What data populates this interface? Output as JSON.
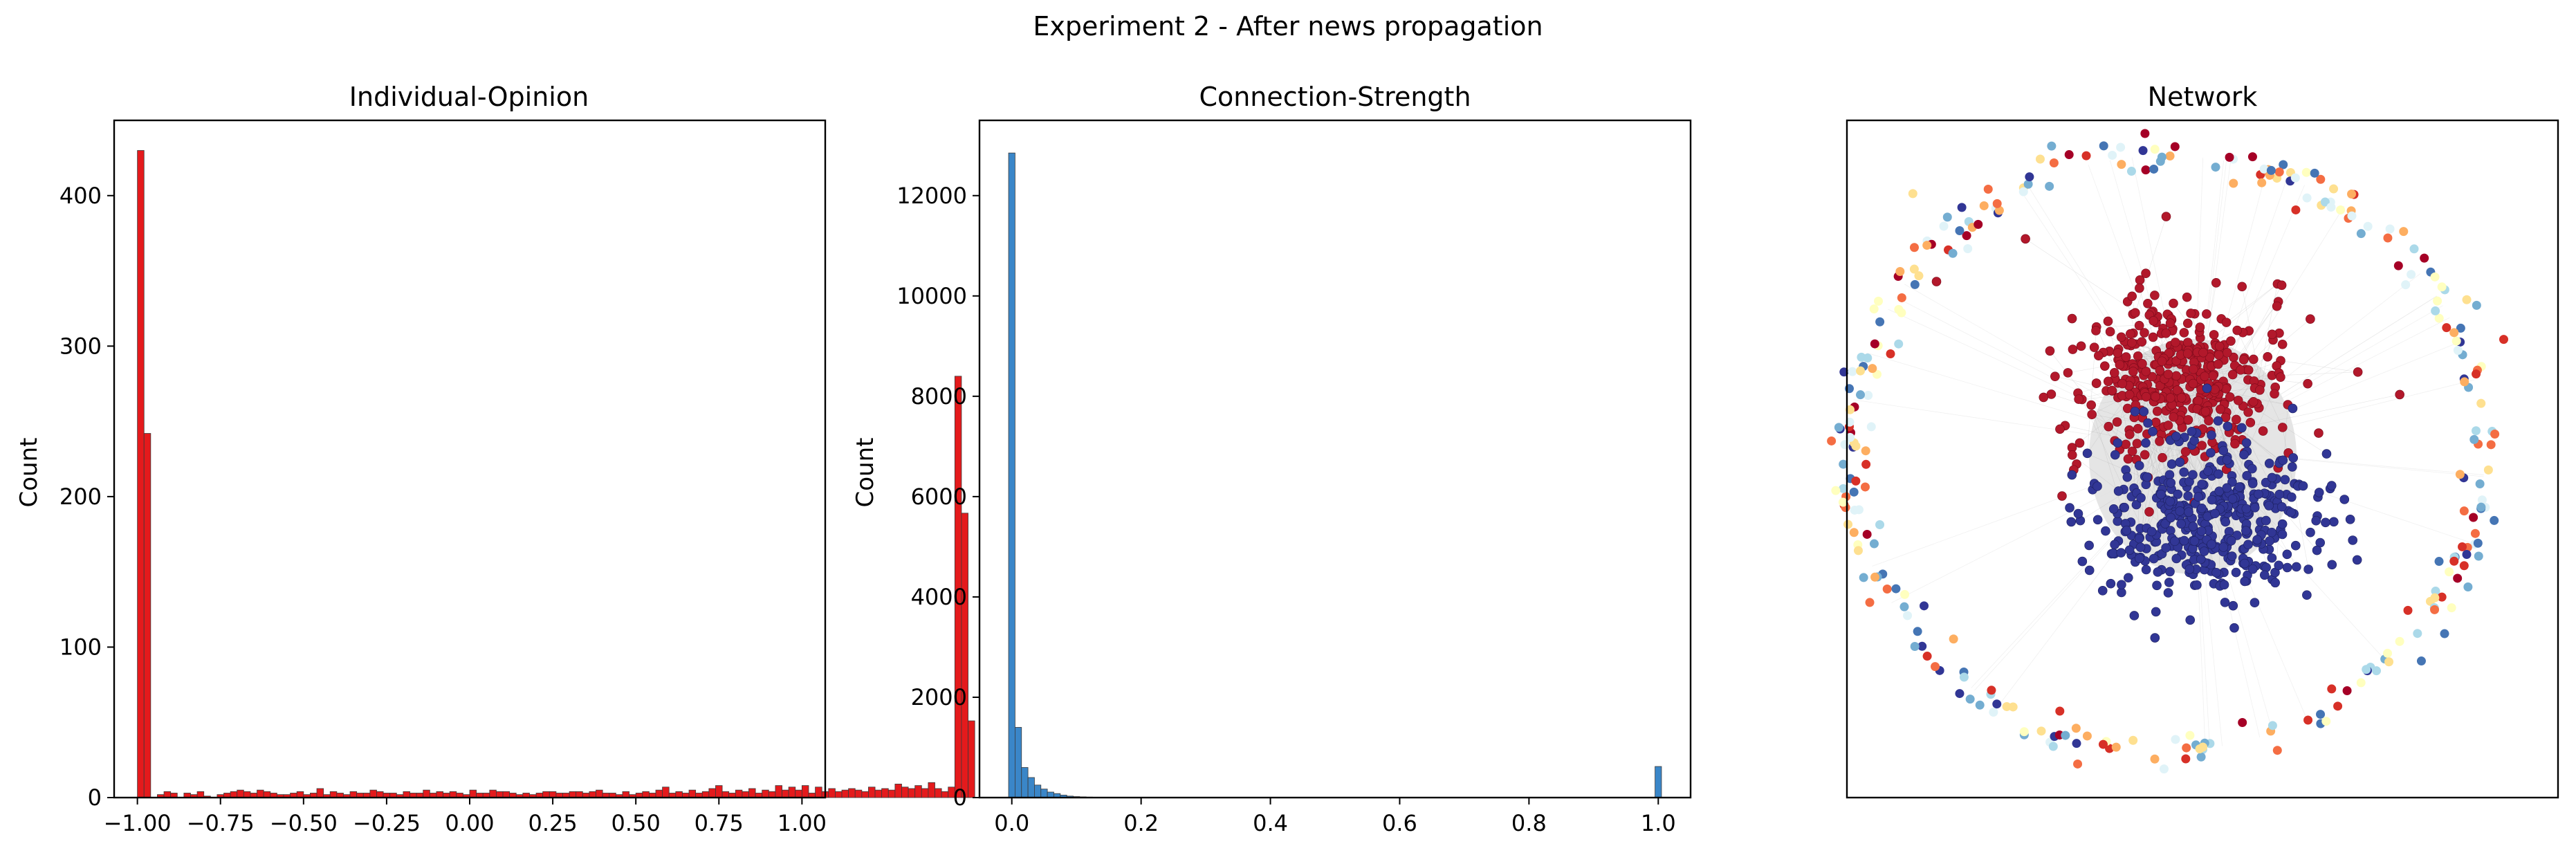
{
  "figure": {
    "suptitle": "Experiment 2 - After news propagation"
  },
  "chart_data": [
    {
      "type": "bar",
      "title": "Individual-Opinion",
      "xlabel": "",
      "ylabel": "Count",
      "xlim": [
        -1.07,
        1.07
      ],
      "ylim": [
        0,
        450
      ],
      "xticks": [
        -1.0,
        -0.75,
        -0.5,
        -0.25,
        0.0,
        0.25,
        0.5,
        0.75,
        1.0
      ],
      "xtick_labels": [
        "−1.00",
        "−0.75",
        "−0.50",
        "−0.25",
        "0.00",
        "0.25",
        "0.50",
        "0.75",
        "1.00"
      ],
      "yticks": [
        0,
        100,
        200,
        300,
        400
      ],
      "ytick_labels": [
        "0",
        "100",
        "200",
        "300",
        "400"
      ],
      "bin_start": -1.0,
      "bin_width": 0.02,
      "values": [
        430,
        242,
        0,
        2,
        4,
        3,
        0,
        3,
        2,
        4,
        1,
        0,
        2,
        3,
        4,
        5,
        4,
        3,
        5,
        4,
        3,
        2,
        2,
        3,
        4,
        2,
        3,
        6,
        2,
        4,
        3,
        2,
        4,
        3,
        3,
        5,
        4,
        3,
        3,
        2,
        4,
        3,
        3,
        5,
        3,
        4,
        3,
        4,
        3,
        2,
        5,
        3,
        3,
        5,
        4,
        4,
        3,
        2,
        3,
        2,
        3,
        4,
        4,
        3,
        3,
        4,
        4,
        3,
        4,
        5,
        3,
        3,
        2,
        4,
        2,
        3,
        4,
        3,
        5,
        7,
        3,
        4,
        3,
        5,
        3,
        4,
        6,
        8,
        4,
        3,
        5,
        4,
        6,
        3,
        5,
        4,
        8,
        5,
        7,
        5,
        8,
        3,
        7,
        4,
        6,
        4,
        5,
        6,
        5,
        4,
        7,
        5,
        6,
        5,
        9,
        7,
        6,
        8,
        6,
        10,
        6,
        4,
        7,
        280,
        189,
        51
      ],
      "bar_color": "#e41a1c",
      "grid": false
    },
    {
      "type": "bar",
      "title": "Connection-Strength",
      "xlabel": "",
      "ylabel": "Count",
      "xlim": [
        -0.05,
        1.05
      ],
      "ylim": [
        0,
        13500
      ],
      "xticks": [
        0.0,
        0.2,
        0.4,
        0.6,
        0.8,
        1.0
      ],
      "xtick_labels": [
        "0.0",
        "0.2",
        "0.4",
        "0.6",
        "0.8",
        "1.0"
      ],
      "yticks": [
        0,
        2000,
        4000,
        6000,
        8000,
        10000,
        12000
      ],
      "ytick_labels": [
        "0",
        "2000",
        "4000",
        "6000",
        "8000",
        "10000",
        "12000"
      ],
      "bin_start": -0.005,
      "bin_width": 0.01,
      "values": [
        12850,
        1400,
        600,
        400,
        250,
        170,
        110,
        80,
        50,
        30,
        20,
        15,
        10,
        6
      ],
      "outlier_bins": [
        {
          "x": 1.0,
          "value": 620
        }
      ],
      "bar_color": "#3a86c8",
      "grid": false
    },
    {
      "type": "scatter",
      "title": "Network",
      "xlabel": "",
      "ylabel": "",
      "node_groups": [
        {
          "name": "",
          "shape": "dense cluster",
          "color": "#b2182b"
        },
        {
          "name": "",
          "shape": "dense cluster",
          "color": "#313695"
        },
        {
          "name": "",
          "shape": "outer ring",
          "color": "mixed"
        }
      ],
      "ring_palette": [
        "#a50026",
        "#d73027",
        "#f46d43",
        "#fdae61",
        "#fee090",
        "#ffffbf",
        "#e0f3f8",
        "#abd9e9",
        "#74add1",
        "#4575b4",
        "#313695"
      ],
      "grid": false
    }
  ]
}
